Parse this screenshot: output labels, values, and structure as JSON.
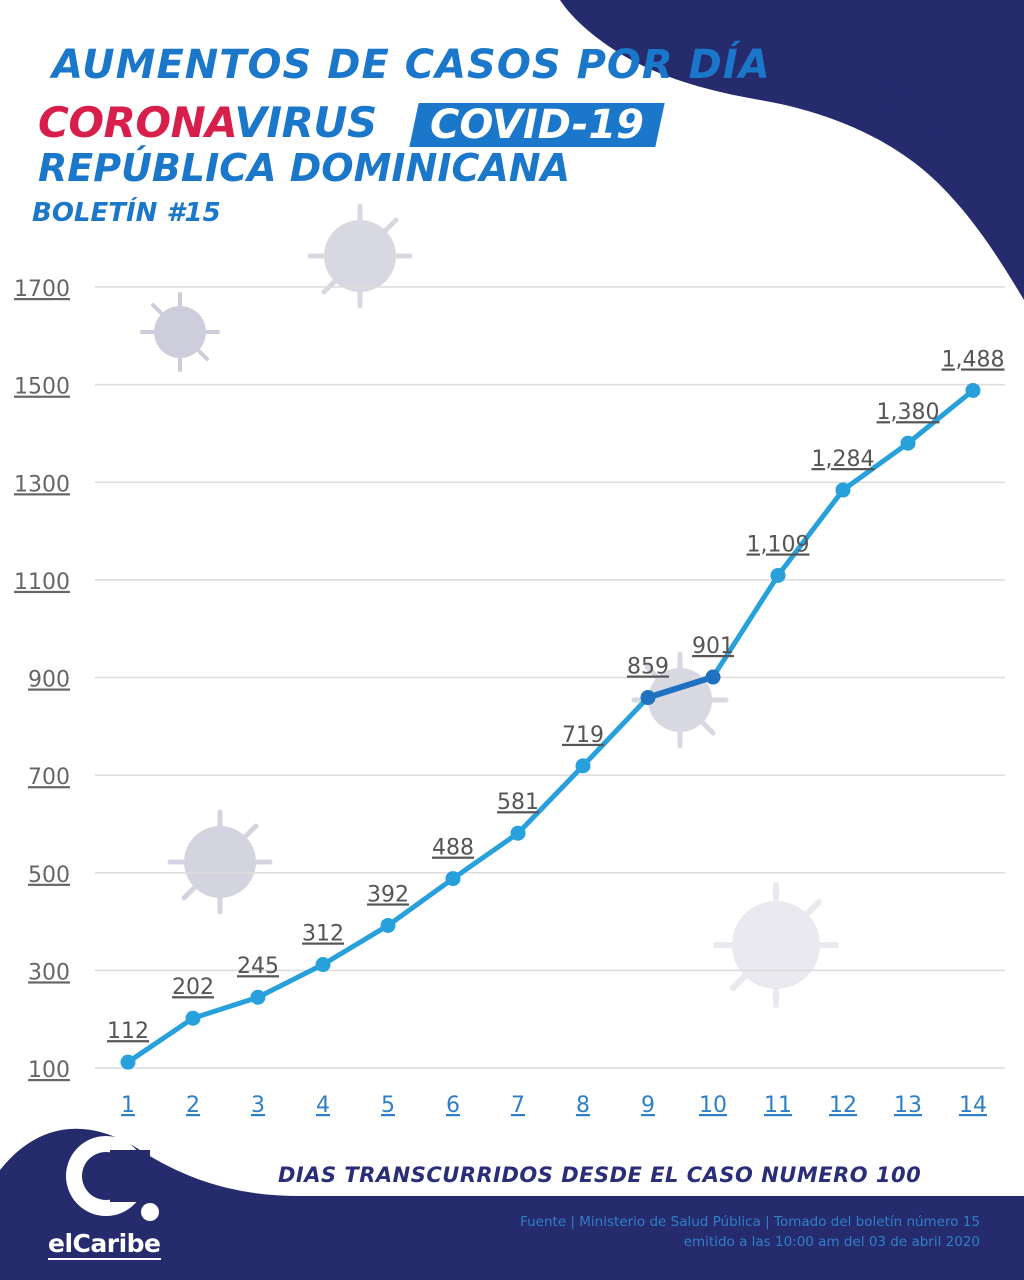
{
  "header": {
    "title": "AUMENTOS DE CASOS POR DÍA",
    "corona": "CORONA",
    "virus": "VIRUS",
    "covid": "COVID-19",
    "country": "REPÚBLICA DOMINICANA",
    "bulletin": "BOLETÍN #15"
  },
  "footer": {
    "source_line1": "Fuente | Ministerio de Salud Pública | Tomado del boletín número 15",
    "source_line2": "emitido a las 10:00 am del 03 de abril 2020"
  },
  "logo": {
    "letter": "C",
    "word": "elCaribe"
  },
  "colors": {
    "brand_blue": "#1a77c9",
    "navy": "#262b6e",
    "red": "#d81e4a",
    "line": "#27a0dc",
    "line_highlight": "#1f72c0",
    "grid": "#dcdcdc",
    "axis_text": "#666666"
  },
  "chart_data": {
    "type": "line",
    "title": "AUMENTOS DE CASOS POR DÍA",
    "xlabel": "DIAS TRANSCURRIDOS DESDE EL CASO NUMERO 100",
    "ylabel": "",
    "x": [
      1,
      2,
      3,
      4,
      5,
      6,
      7,
      8,
      9,
      10,
      11,
      12,
      13,
      14
    ],
    "series": [
      {
        "values": [
          112,
          202,
          245,
          312,
          392,
          488,
          581,
          719,
          859,
          901,
          1109,
          1284,
          1380,
          1488
        ]
      }
    ],
    "data_labels": [
      "112",
      "202",
      "245",
      "312",
      "392",
      "488",
      "581",
      "719",
      "859",
      "901",
      "1,109",
      "1,284",
      "1,380",
      "1,488"
    ],
    "highlight_segment": [
      9,
      10
    ],
    "y_ticks": [
      100,
      300,
      500,
      700,
      900,
      1100,
      1300,
      1500,
      1700
    ],
    "ylim": [
      100,
      1700
    ],
    "grid": true,
    "legend": "none"
  }
}
